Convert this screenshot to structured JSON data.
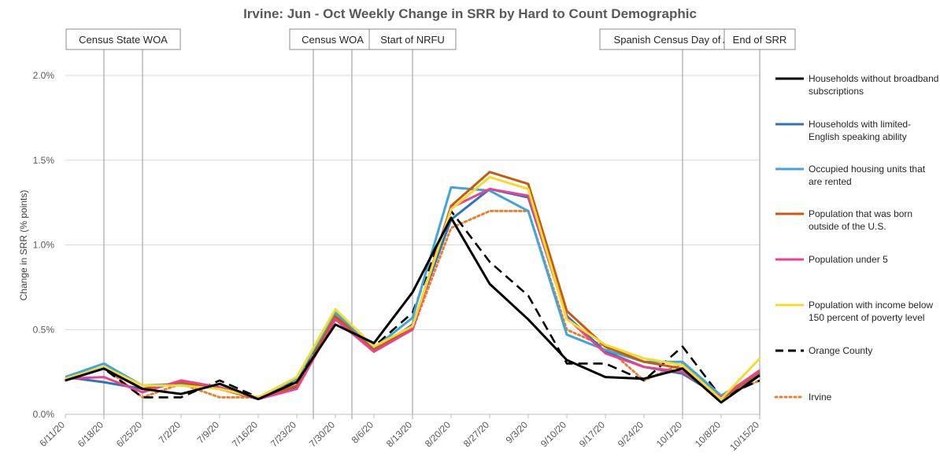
{
  "chart_data": {
    "type": "line",
    "title": "Irvine: Jun - Oct Weekly Change in SRR by Hard to Count Demographic",
    "xlabel": "",
    "ylabel": "Change in SRR (% points)",
    "ylim": [
      0,
      2.0
    ],
    "y_ticks": [
      "0.0%",
      "0.5%",
      "1.0%",
      "1.5%",
      "2.0%"
    ],
    "y_tick_values": [
      0,
      0.5,
      1.0,
      1.5,
      2.0
    ],
    "grid": true,
    "legend_position": "right",
    "categories": [
      "6/11/20",
      "6/18/20",
      "6/25/20",
      "7/2/20",
      "7/9/20",
      "7/16/20",
      "7/23/20",
      "7/30/20",
      "8/6/20",
      "8/13/20",
      "8/20/20",
      "8/27/20",
      "9/3/20",
      "9/10/20",
      "9/17/20",
      "9/24/20",
      "10/1/20",
      "10/8/20",
      "10/15/20"
    ],
    "events": [
      {
        "label": "Census State WOA",
        "x_dates": [
          "6/18/20",
          "6/25/20"
        ]
      },
      {
        "label": "Census WOA",
        "x_dates": [
          "7/30/20 - 4 days",
          "7/30/20 + 3 days"
        ]
      },
      {
        "label": "Start of NRFU",
        "x_dates": [
          "8/13/20"
        ]
      },
      {
        "label": "Spanish Census Day of Action",
        "x_dates": [
          "10/1/20"
        ]
      },
      {
        "label": "End of SRR",
        "x_dates": [
          "10/15/20"
        ]
      }
    ],
    "series": [
      {
        "name": "Households without broadband subscriptions",
        "color": "#000000",
        "style": "solid",
        "values": [
          0.2,
          0.27,
          0.15,
          0.12,
          0.18,
          0.09,
          0.19,
          0.53,
          0.42,
          0.72,
          1.16,
          0.77,
          0.56,
          0.32,
          0.22,
          0.21,
          0.27,
          0.07,
          0.23
        ]
      },
      {
        "name": "Households with limited-English speaking ability",
        "color": "#2e75b6",
        "style": "solid",
        "values": [
          0.22,
          0.19,
          0.15,
          0.19,
          0.16,
          0.09,
          0.16,
          0.57,
          0.37,
          0.53,
          1.15,
          1.33,
          1.28,
          0.58,
          0.37,
          0.28,
          0.24,
          0.1,
          0.24
        ]
      },
      {
        "name": "Occupied housing units that are rented",
        "color": "#41a5d9",
        "style": "solid",
        "values": [
          0.22,
          0.3,
          0.17,
          0.18,
          0.15,
          0.1,
          0.21,
          0.6,
          0.39,
          0.57,
          1.34,
          1.32,
          1.2,
          0.47,
          0.38,
          0.31,
          0.31,
          0.11,
          0.25
        ]
      },
      {
        "name": "Population that was born outside of the U.S.",
        "color": "#c55a11",
        "style": "solid",
        "values": [
          0.21,
          0.28,
          0.15,
          0.19,
          0.15,
          0.09,
          0.17,
          0.58,
          0.38,
          0.51,
          1.23,
          1.43,
          1.36,
          0.61,
          0.4,
          0.31,
          0.27,
          0.09,
          0.25
        ]
      },
      {
        "name": "Population under 5",
        "color": "#e84393",
        "style": "solid",
        "values": [
          0.21,
          0.22,
          0.13,
          0.2,
          0.16,
          0.09,
          0.15,
          0.56,
          0.37,
          0.5,
          1.22,
          1.33,
          1.29,
          0.57,
          0.36,
          0.28,
          0.25,
          0.1,
          0.26
        ]
      },
      {
        "name": "Population with income below 150 percent of poverty level",
        "color": "#f2dc30",
        "style": "solid",
        "values": [
          0.21,
          0.28,
          0.17,
          0.17,
          0.15,
          0.1,
          0.22,
          0.62,
          0.4,
          0.52,
          1.21,
          1.4,
          1.33,
          0.56,
          0.41,
          0.33,
          0.29,
          0.09,
          0.33
        ]
      },
      {
        "name": "Orange County",
        "color": "#000000",
        "style": "dashed",
        "values": [
          0.2,
          0.27,
          0.1,
          0.1,
          0.2,
          0.1,
          0.2,
          0.6,
          0.4,
          0.6,
          1.2,
          0.9,
          0.7,
          0.3,
          0.3,
          0.2,
          0.4,
          0.1,
          0.2
        ]
      },
      {
        "name": "Irvine",
        "color": "#ed7d31",
        "style": "dotted",
        "values": [
          0.2,
          0.28,
          0.1,
          0.18,
          0.1,
          0.1,
          0.2,
          0.6,
          0.4,
          0.5,
          1.1,
          1.2,
          1.2,
          0.5,
          0.4,
          0.2,
          0.3,
          0.1,
          0.2
        ]
      }
    ]
  }
}
